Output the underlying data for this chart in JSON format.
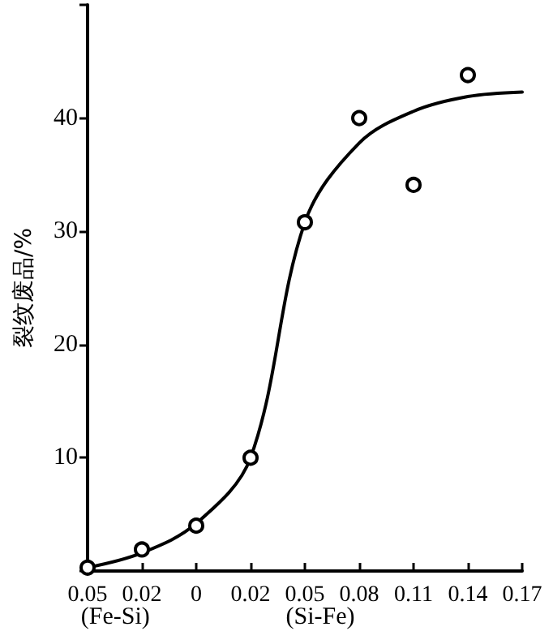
{
  "chart_data": {
    "type": "scatter",
    "ylabel": "裂纹废品/%",
    "ylim": [
      0,
      50
    ],
    "categories": [
      "0.05",
      "0.02",
      "0",
      "0.02",
      "0.05",
      "0.08",
      "0.11",
      "0.14",
      "0.17"
    ],
    "yticks": [
      {
        "value": 0,
        "label": null
      },
      10,
      20,
      30,
      40,
      {
        "value": 50,
        "label": null
      }
    ],
    "annotations": [
      "(Fe-Si)",
      "(Si-Fe)"
    ],
    "grid": false,
    "series": [
      {
        "color": "#000000",
        "marker": "circle",
        "values": [
          0.3,
          1.9,
          4,
          10,
          30.8,
          40,
          34.1,
          43.8,
          null
        ]
      },
      {
        "type": "line",
        "color": "#000000",
        "marker": "none",
        "line_style": "solid",
        "values": [
          0.3,
          1.6,
          4.2,
          10,
          30.8,
          37.8,
          40.6,
          41.9,
          42.3
        ]
      }
    ]
  }
}
